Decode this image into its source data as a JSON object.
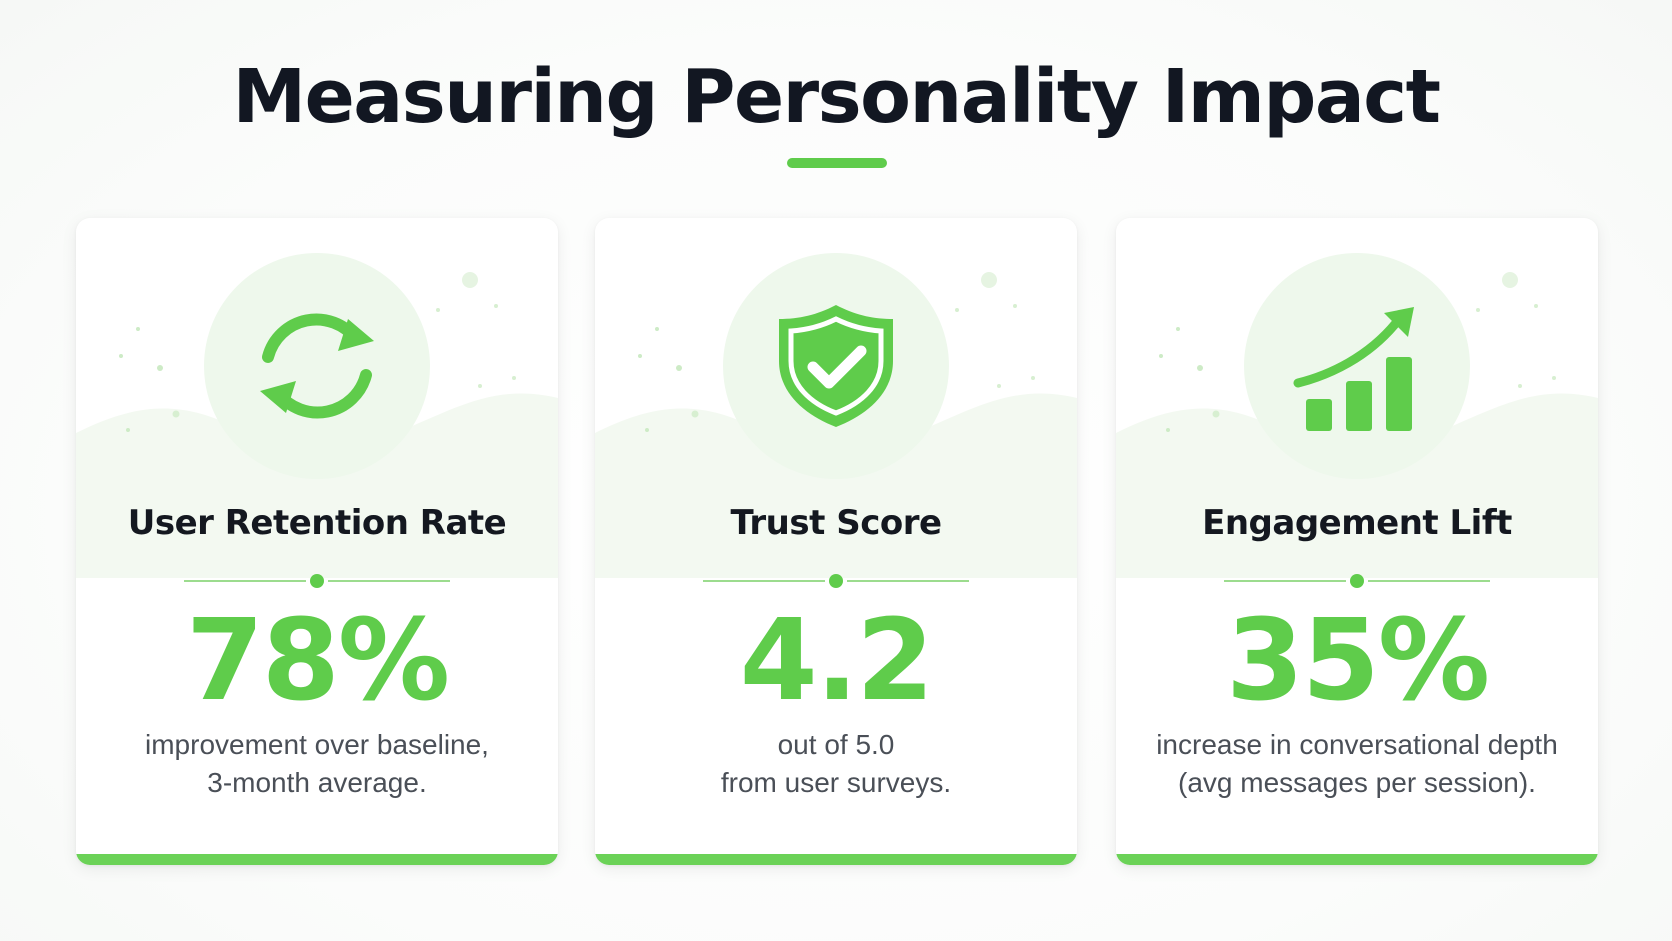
{
  "page": {
    "title": "Measuring Personality Impact"
  },
  "colors": {
    "accent": "#5fcc4b",
    "accent_light": "#eef8ec",
    "title_text": "#121722",
    "body_text": "#4a4f57"
  },
  "cards": [
    {
      "icon": "refresh-icon",
      "label": "User Retention Rate",
      "value": "78%",
      "desc_line1": "improvement over baseline,",
      "desc_line2": "3-month average."
    },
    {
      "icon": "shield-check-icon",
      "label": "Trust Score",
      "value": "4.2",
      "desc_line1": "out of 5.0",
      "desc_line2": "from user surveys."
    },
    {
      "icon": "growth-chart-icon",
      "label": "Engagement Lift",
      "value": "35%",
      "desc_line1": "increase in conversational depth",
      "desc_line2": "(avg messages per session)."
    }
  ]
}
